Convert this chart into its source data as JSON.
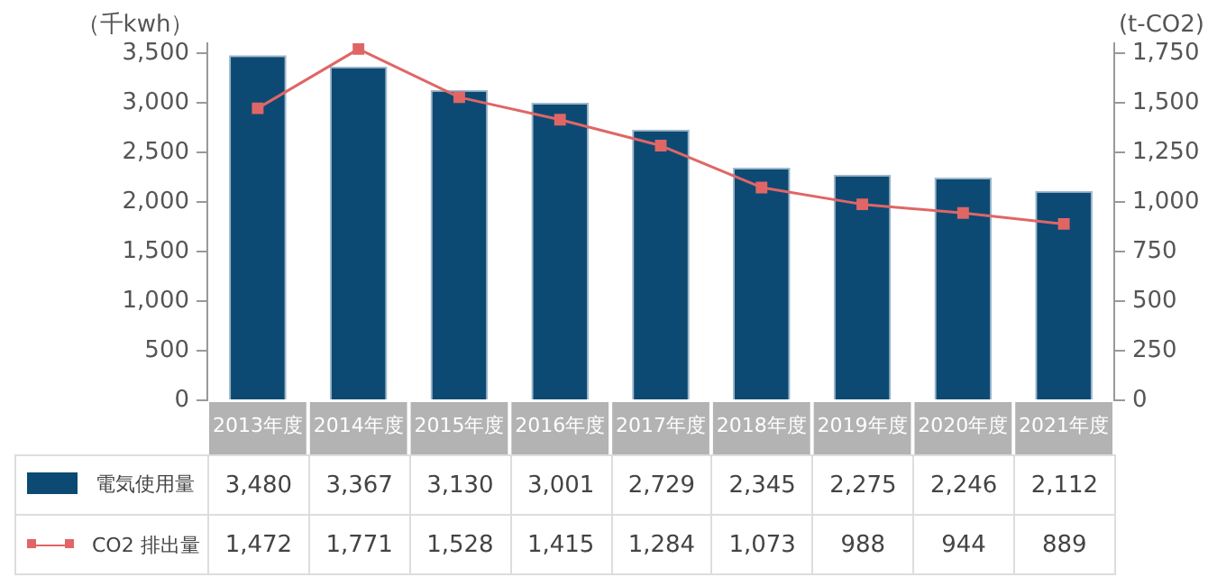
{
  "chart_data": {
    "type": "bar",
    "ylabel": "（千kwh）",
    "y2label": "(t-CO2)",
    "categories": [
      "2013年度",
      "2014年度",
      "2015年度",
      "2016年度",
      "2017年度",
      "2018年度",
      "2019年度",
      "2020年度",
      "2021年度"
    ],
    "series": [
      {
        "name": "電気使用量",
        "color": "#0d4a73",
        "values": [
          3480,
          3367,
          3130,
          3001,
          2729,
          2345,
          2275,
          2246,
          2112
        ],
        "value_labels": [
          "3,480",
          "3,367",
          "3,130",
          "3,001",
          "2,729",
          "2,345",
          "2,275",
          "2,246",
          "2,112"
        ]
      },
      {
        "name": "CO2 排出量",
        "type": "line",
        "axis": "y2",
        "color": "#e06666",
        "marker": "square",
        "values": [
          1472,
          1771,
          1528,
          1415,
          1284,
          1073,
          988,
          944,
          889
        ],
        "value_labels": [
          "1,472",
          "1,771",
          "1,528",
          "1,415",
          "1,284",
          "1,073",
          "988",
          "944",
          "889"
        ]
      }
    ],
    "ylim": [
      0,
      3600
    ],
    "yticks": [
      0,
      {
        "value": 500,
        "label": "500"
      },
      {
        "value": 1000,
        "label": "1,000"
      },
      {
        "value": 1500,
        "label": "1,500"
      },
      {
        "value": 2000,
        "label": "2,000"
      },
      {
        "value": 2500,
        "label": "2,500"
      },
      {
        "value": 3000,
        "label": "3,000"
      },
      {
        "value": 3500,
        "label": "3,500"
      }
    ],
    "y2lim": [
      0,
      1800
    ],
    "y2ticks": [
      0,
      250,
      500,
      750,
      {
        "value": 1000,
        "label": "1,000"
      },
      {
        "value": 1250,
        "label": "1,250"
      },
      {
        "value": 1500,
        "label": "1,500"
      },
      {
        "value": 1750,
        "label": "1,750"
      }
    ],
    "grid": false,
    "legend": "bottom"
  }
}
